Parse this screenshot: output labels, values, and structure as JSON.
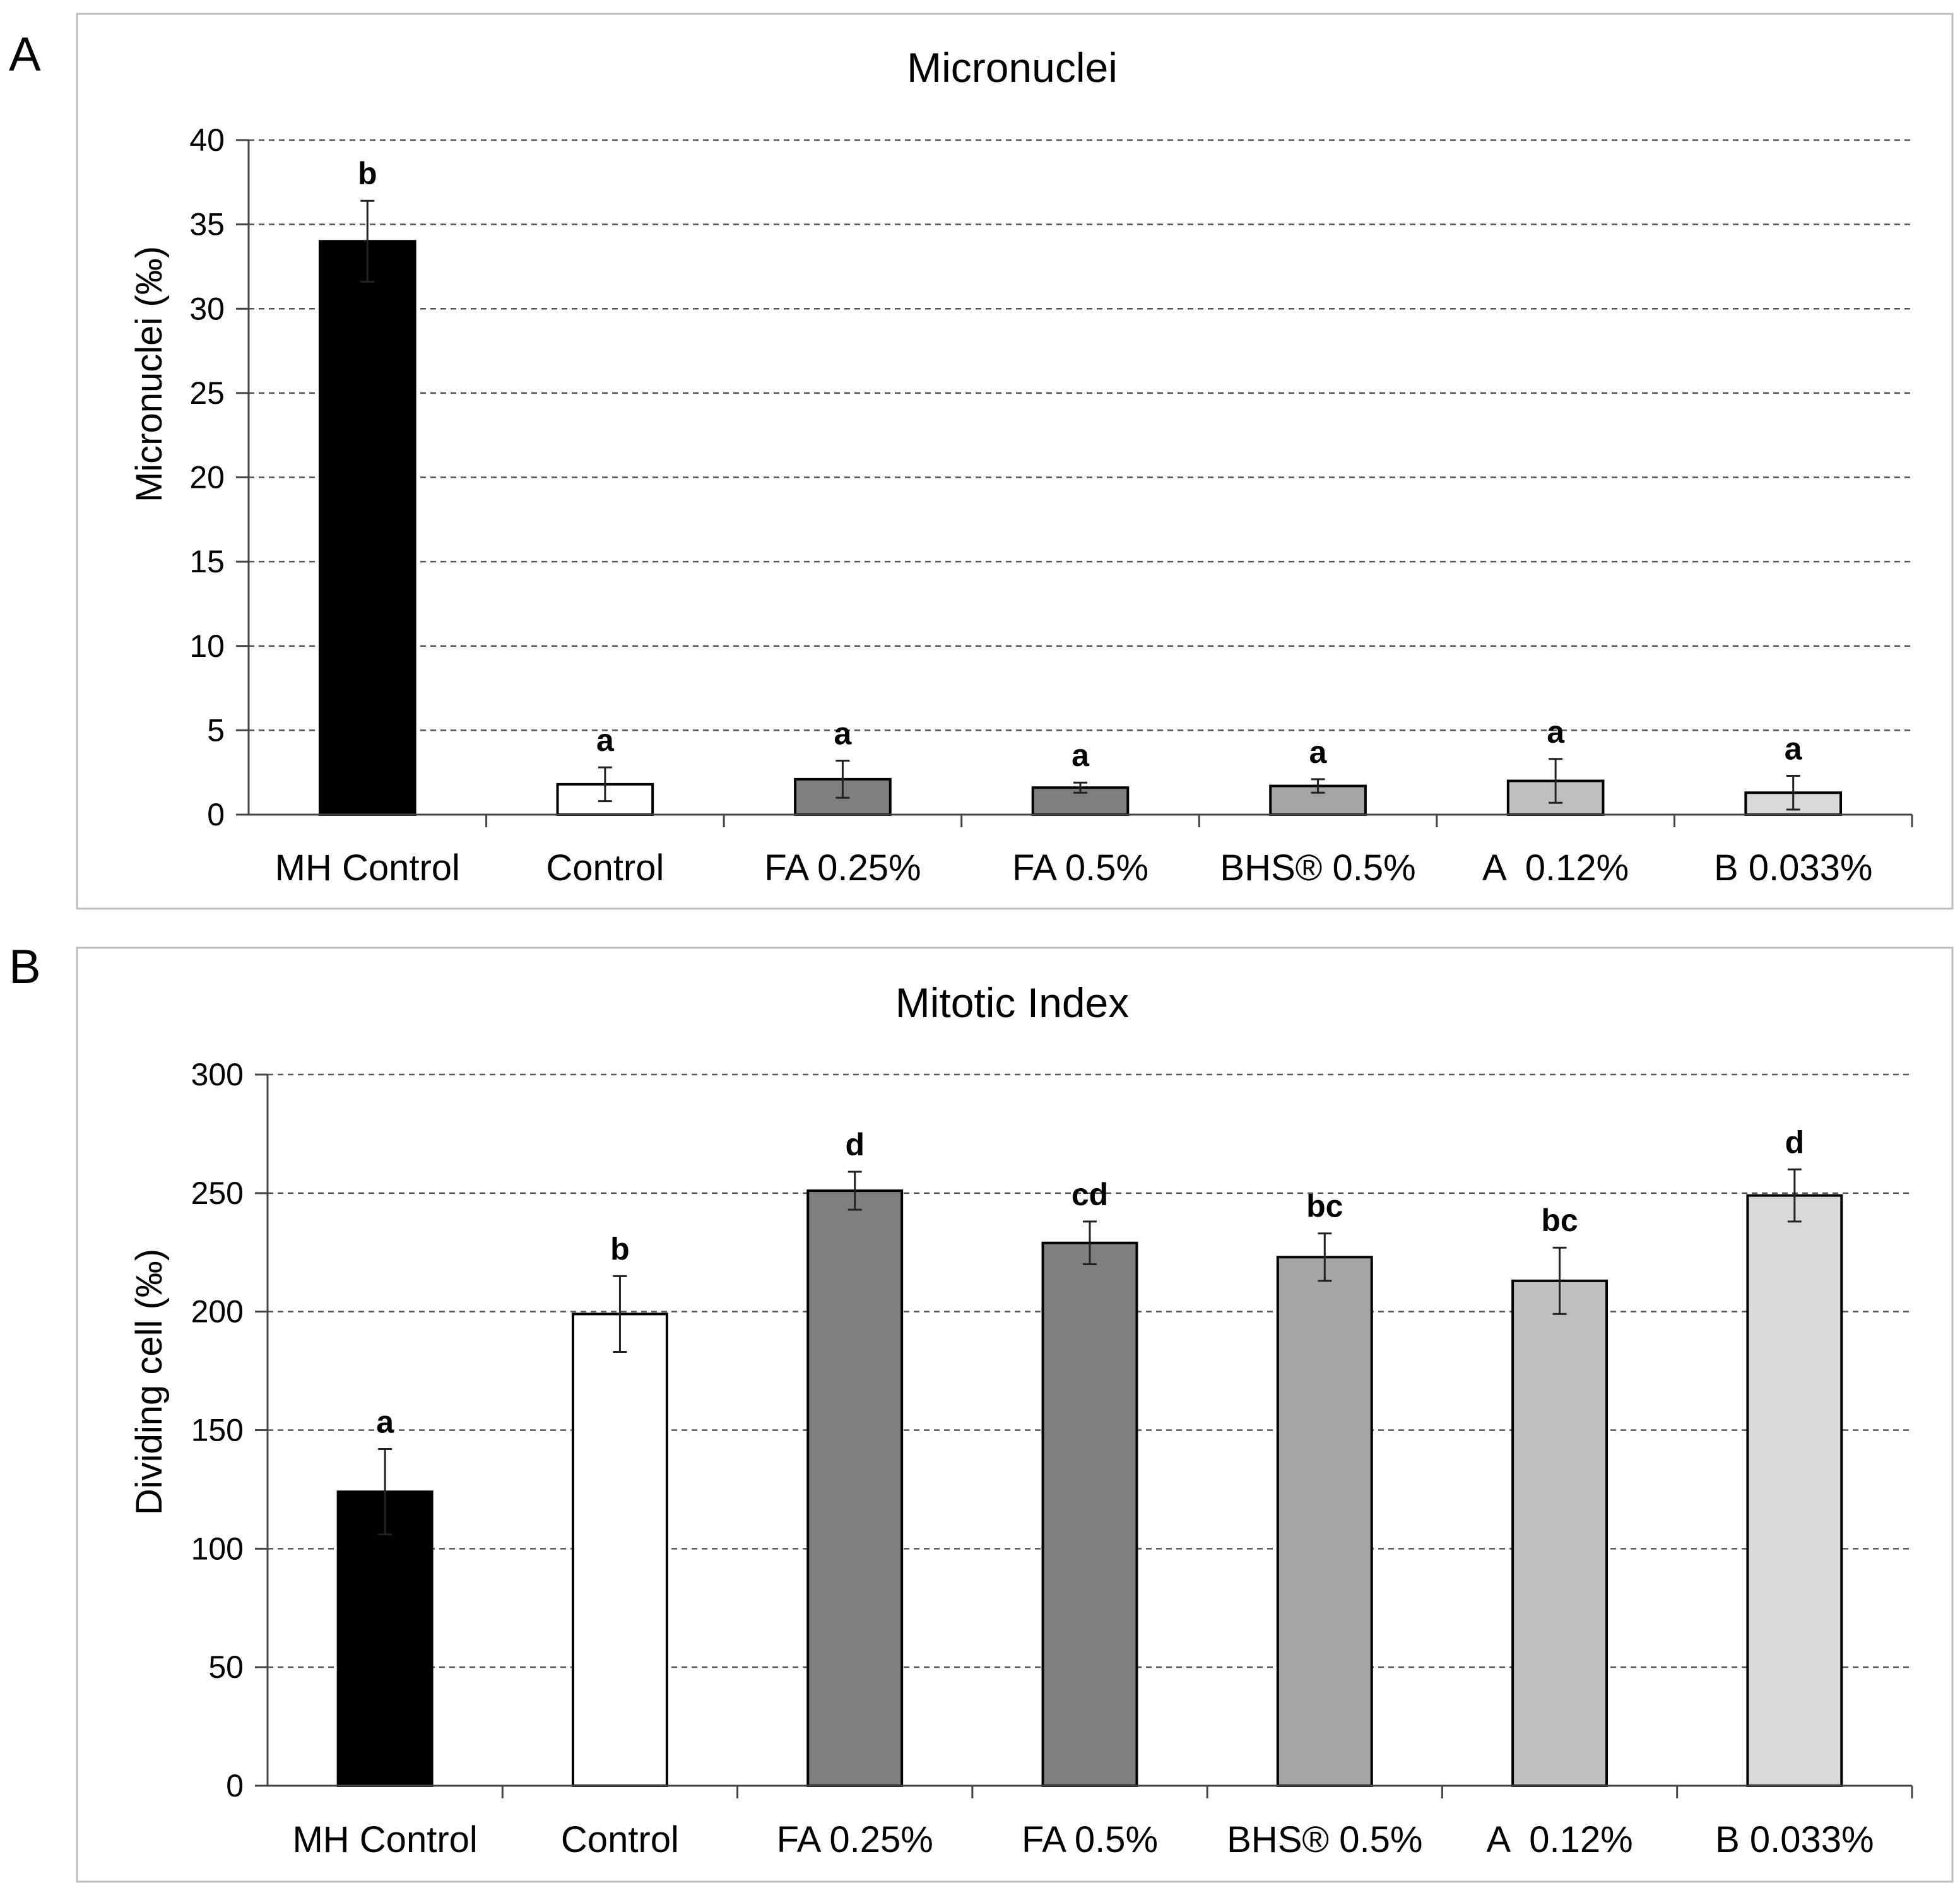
{
  "chart_data": [
    {
      "panel": "A",
      "type": "bar",
      "title": "Micronuclei",
      "ylabel": "Micronuclei (‰)",
      "xlabel": "",
      "ylim": [
        0,
        40
      ],
      "yticks": [
        0,
        5,
        10,
        15,
        20,
        25,
        30,
        35,
        40
      ],
      "grid": true,
      "categories": [
        "MH Control",
        "Control",
        "FA 0.25%",
        "FA 0.5%",
        "BHS® 0.5%",
        "A  0.12%",
        "B 0.033%"
      ],
      "values": [
        34.0,
        1.8,
        2.1,
        1.6,
        1.7,
        2.0,
        1.3
      ],
      "errors": [
        2.4,
        1.0,
        1.1,
        0.3,
        0.4,
        1.3,
        1.0
      ],
      "significance": [
        "b",
        "a",
        "a",
        "a",
        "a",
        "a",
        "a"
      ],
      "colors": [
        "#000000",
        "#ffffff",
        "#7f7f7f",
        "#7f7f7f",
        "#a5a5a5",
        "#bfbfbf",
        "#d9d9d9"
      ]
    },
    {
      "panel": "B",
      "type": "bar",
      "title": "Mitotic Index",
      "ylabel": "Dividing cell (‰)",
      "xlabel": "",
      "ylim": [
        0,
        300
      ],
      "yticks": [
        0,
        50,
        100,
        150,
        200,
        250,
        300
      ],
      "grid": true,
      "categories": [
        "MH Control",
        "Control",
        "FA 0.25%",
        "FA 0.5%",
        "BHS® 0.5%",
        "A  0.12%",
        "B 0.033%"
      ],
      "values": [
        124,
        199,
        251,
        229,
        223,
        213,
        249
      ],
      "errors": [
        18,
        16,
        8,
        9,
        10,
        14,
        11
      ],
      "significance": [
        "a",
        "b",
        "d",
        "cd",
        "bc",
        "bc",
        "d"
      ],
      "colors": [
        "#000000",
        "#ffffff",
        "#7f7f7f",
        "#7f7f7f",
        "#a5a5a5",
        "#bfbfbf",
        "#d9d9d9"
      ]
    }
  ]
}
